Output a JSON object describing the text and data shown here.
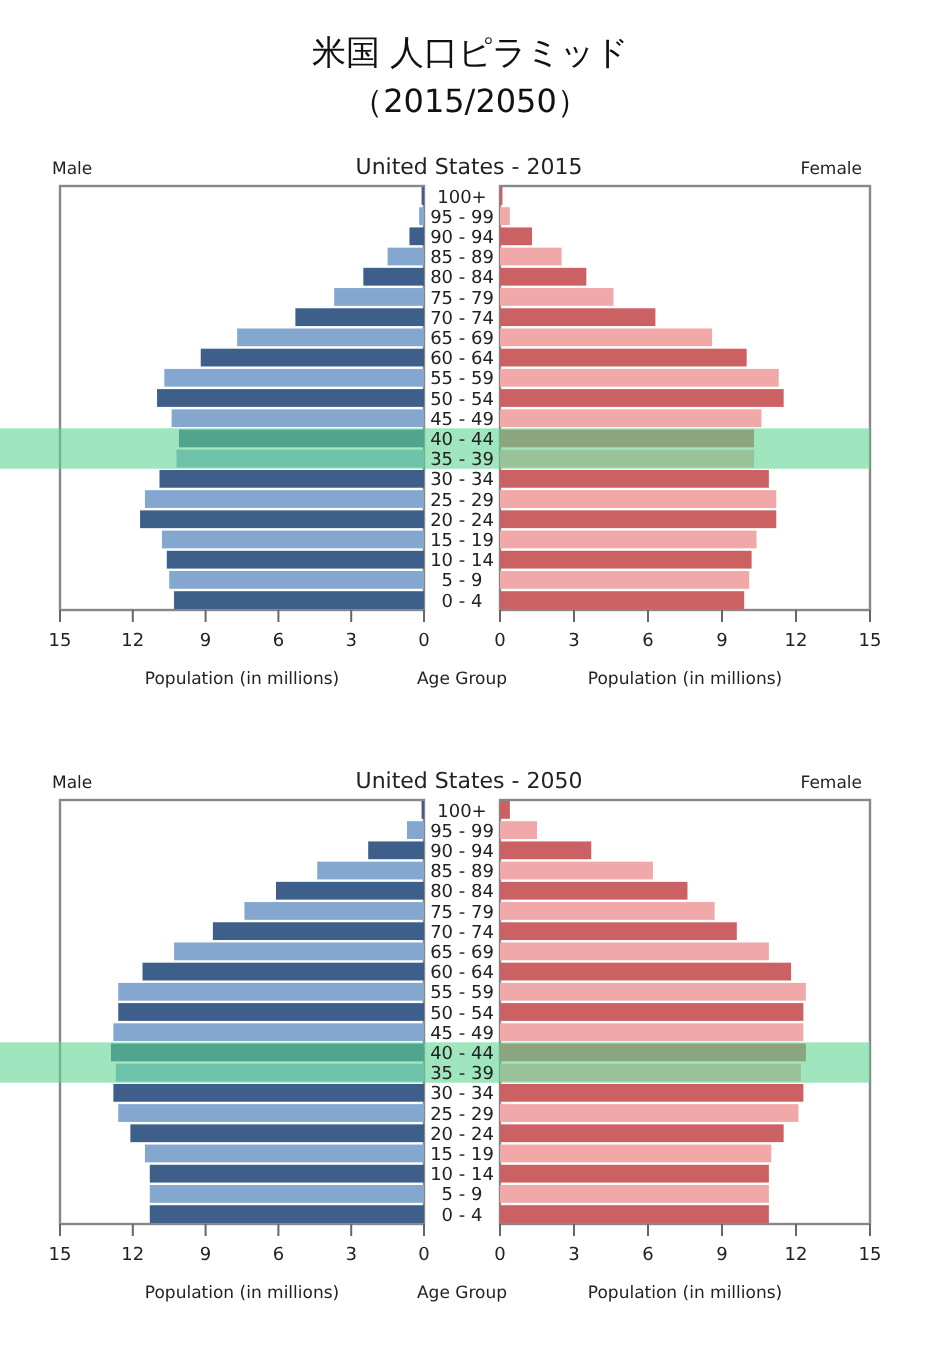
{
  "chart_data": [
    {
      "type": "bar",
      "orientation": "horizontal",
      "title": "米国 人口ピラミッド",
      "subtitle": "（2015/2050）",
      "annotations": [
        "Male"
      ],
      "xlabel": "Population (in millions)",
      "categories": [
        "100+",
        "95 - 99",
        "90 - 94",
        "85 - 89",
        "80 - 84",
        "75 - 79",
        "70 - 74",
        "65 - 69",
        "60 - 64",
        "55 - 59",
        "50 - 54",
        "45 - 49",
        "40 - 44",
        "35 - 39",
        "30 - 34",
        "25 - 29",
        "20 - 24",
        "15 - 19",
        "10 - 14",
        "5 - 9",
        "0 - 4"
      ],
      "tick_labels": "x",
      "xlim": [
        15,
        0
      ],
      "xticks": [
        15,
        12,
        9,
        6,
        3,
        0
      ],
      "values": [
        0.1,
        0.2,
        0.6,
        1.5,
        2.5,
        3.7,
        5.3,
        7.7,
        9.2,
        10.7,
        11.0,
        10.4,
        10.1,
        10.2,
        10.9,
        11.5,
        11.7,
        10.8,
        10.6,
        10.5,
        10.3
      ],
      "colors": [
        "#3d5f8a",
        "#84a7d0",
        "#3d5f8a",
        "#84a7d0",
        "#3d5f8a",
        "#84a7d0",
        "#3d5f8a",
        "#84a7d0",
        "#3d5f8a",
        "#84a7d0",
        "#3d5f8a",
        "#84a7d0",
        "#3d5f8a",
        "#84a7d0",
        "#3d5f8a",
        "#84a7d0",
        "#3d5f8a",
        "#84a7d0",
        "#3d5f8a",
        "#84a7d0",
        "#3d5f8a"
      ],
      "bands": [
        {
          "axis": "y",
          "from": "40 - 44",
          "to": "35 - 39",
          "color": "#5fd391"
        }
      ]
    },
    {
      "type": "bar",
      "orientation": "horizontal",
      "title": "United States - 2015",
      "annotations": [
        "Female"
      ],
      "xlabel": "Population (in millions)",
      "ylabel": "Age Group",
      "categories": [
        "100+",
        "95 - 99",
        "90 - 94",
        "85 - 89",
        "80 - 84",
        "75 - 79",
        "70 - 74",
        "65 - 69",
        "60 - 64",
        "55 - 59",
        "50 - 54",
        "45 - 49",
        "40 - 44",
        "35 - 39",
        "30 - 34",
        "25 - 29",
        "20 - 24",
        "15 - 19",
        "10 - 14",
        "5 - 9",
        "0 - 4"
      ],
      "xlim": [
        0,
        15
      ],
      "xticks": [
        0,
        3,
        6,
        9,
        12,
        15
      ],
      "values": [
        0.1,
        0.4,
        1.3,
        2.5,
        3.5,
        4.6,
        6.3,
        8.6,
        10.0,
        11.3,
        11.5,
        10.6,
        10.3,
        10.3,
        10.9,
        11.2,
        11.2,
        10.4,
        10.2,
        10.1,
        9.9
      ],
      "colors": [
        "#cc6163",
        "#f0a8a8",
        "#cc6163",
        "#f0a8a8",
        "#cc6163",
        "#f0a8a8",
        "#cc6163",
        "#f0a8a8",
        "#cc6163",
        "#f0a8a8",
        "#cc6163",
        "#f0a8a8",
        "#cc6163",
        "#f0a8a8",
        "#cc6163",
        "#f0a8a8",
        "#cc6163",
        "#f0a8a8",
        "#cc6163",
        "#f0a8a8",
        "#cc6163"
      ],
      "bands": [
        {
          "axis": "y",
          "from": "40 - 44",
          "to": "35 - 39",
          "color": "#5fd391"
        }
      ]
    },
    {
      "type": "bar",
      "orientation": "horizontal",
      "annotations": [
        "Male"
      ],
      "xlabel": "Population (in millions)",
      "categories": [
        "100+",
        "95 - 99",
        "90 - 94",
        "85 - 89",
        "80 - 84",
        "75 - 79",
        "70 - 74",
        "65 - 69",
        "60 - 64",
        "55 - 59",
        "50 - 54",
        "45 - 49",
        "40 - 44",
        "35 - 39",
        "30 - 34",
        "25 - 29",
        "20 - 24",
        "15 - 19",
        "10 - 14",
        "5 - 9",
        "0 - 4"
      ],
      "tick_labels": "x",
      "xlim": [
        15,
        0
      ],
      "xticks": [
        15,
        12,
        9,
        6,
        3,
        0
      ],
      "values": [
        0.1,
        0.7,
        2.3,
        4.4,
        6.1,
        7.4,
        8.7,
        10.3,
        11.6,
        12.6,
        12.6,
        12.8,
        12.9,
        12.7,
        12.8,
        12.6,
        12.1,
        11.5,
        11.3,
        11.3,
        11.3
      ],
      "colors": [
        "#3d5f8a",
        "#84a7d0",
        "#3d5f8a",
        "#84a7d0",
        "#3d5f8a",
        "#84a7d0",
        "#3d5f8a",
        "#84a7d0",
        "#3d5f8a",
        "#84a7d0",
        "#3d5f8a",
        "#84a7d0",
        "#3d5f8a",
        "#84a7d0",
        "#3d5f8a",
        "#84a7d0",
        "#3d5f8a",
        "#84a7d0",
        "#3d5f8a",
        "#84a7d0",
        "#3d5f8a"
      ],
      "bands": [
        {
          "axis": "y",
          "from": "40 - 44",
          "to": "35 - 39",
          "color": "#5fd391"
        }
      ]
    },
    {
      "type": "bar",
      "orientation": "horizontal",
      "title": "United States - 2050",
      "annotations": [
        "Female"
      ],
      "xlabel": "Population (in millions)",
      "ylabel": "Age Group",
      "categories": [
        "100+",
        "95 - 99",
        "90 - 94",
        "85 - 89",
        "80 - 84",
        "75 - 79",
        "70 - 74",
        "65 - 69",
        "60 - 64",
        "55 - 59",
        "50 - 54",
        "45 - 49",
        "40 - 44",
        "35 - 39",
        "30 - 34",
        "25 - 29",
        "20 - 24",
        "15 - 19",
        "10 - 14",
        "5 - 9",
        "0 - 4"
      ],
      "xlim": [
        0,
        15
      ],
      "xticks": [
        0,
        3,
        6,
        9,
        12,
        15
      ],
      "values": [
        0.4,
        1.5,
        3.7,
        6.2,
        7.6,
        8.7,
        9.6,
        10.9,
        11.8,
        12.4,
        12.3,
        12.3,
        12.4,
        12.2,
        12.3,
        12.1,
        11.5,
        11.0,
        10.9,
        10.9,
        10.9
      ],
      "colors": [
        "#cc6163",
        "#f0a8a8",
        "#cc6163",
        "#f0a8a8",
        "#cc6163",
        "#f0a8a8",
        "#cc6163",
        "#f0a8a8",
        "#cc6163",
        "#f0a8a8",
        "#cc6163",
        "#f0a8a8",
        "#cc6163",
        "#f0a8a8",
        "#cc6163",
        "#f0a8a8",
        "#cc6163",
        "#f0a8a8",
        "#cc6163",
        "#f0a8a8",
        "#cc6163"
      ],
      "bands": [
        {
          "axis": "y",
          "from": "40 - 44",
          "to": "35 - 39",
          "color": "#5fd391"
        }
      ]
    }
  ]
}
